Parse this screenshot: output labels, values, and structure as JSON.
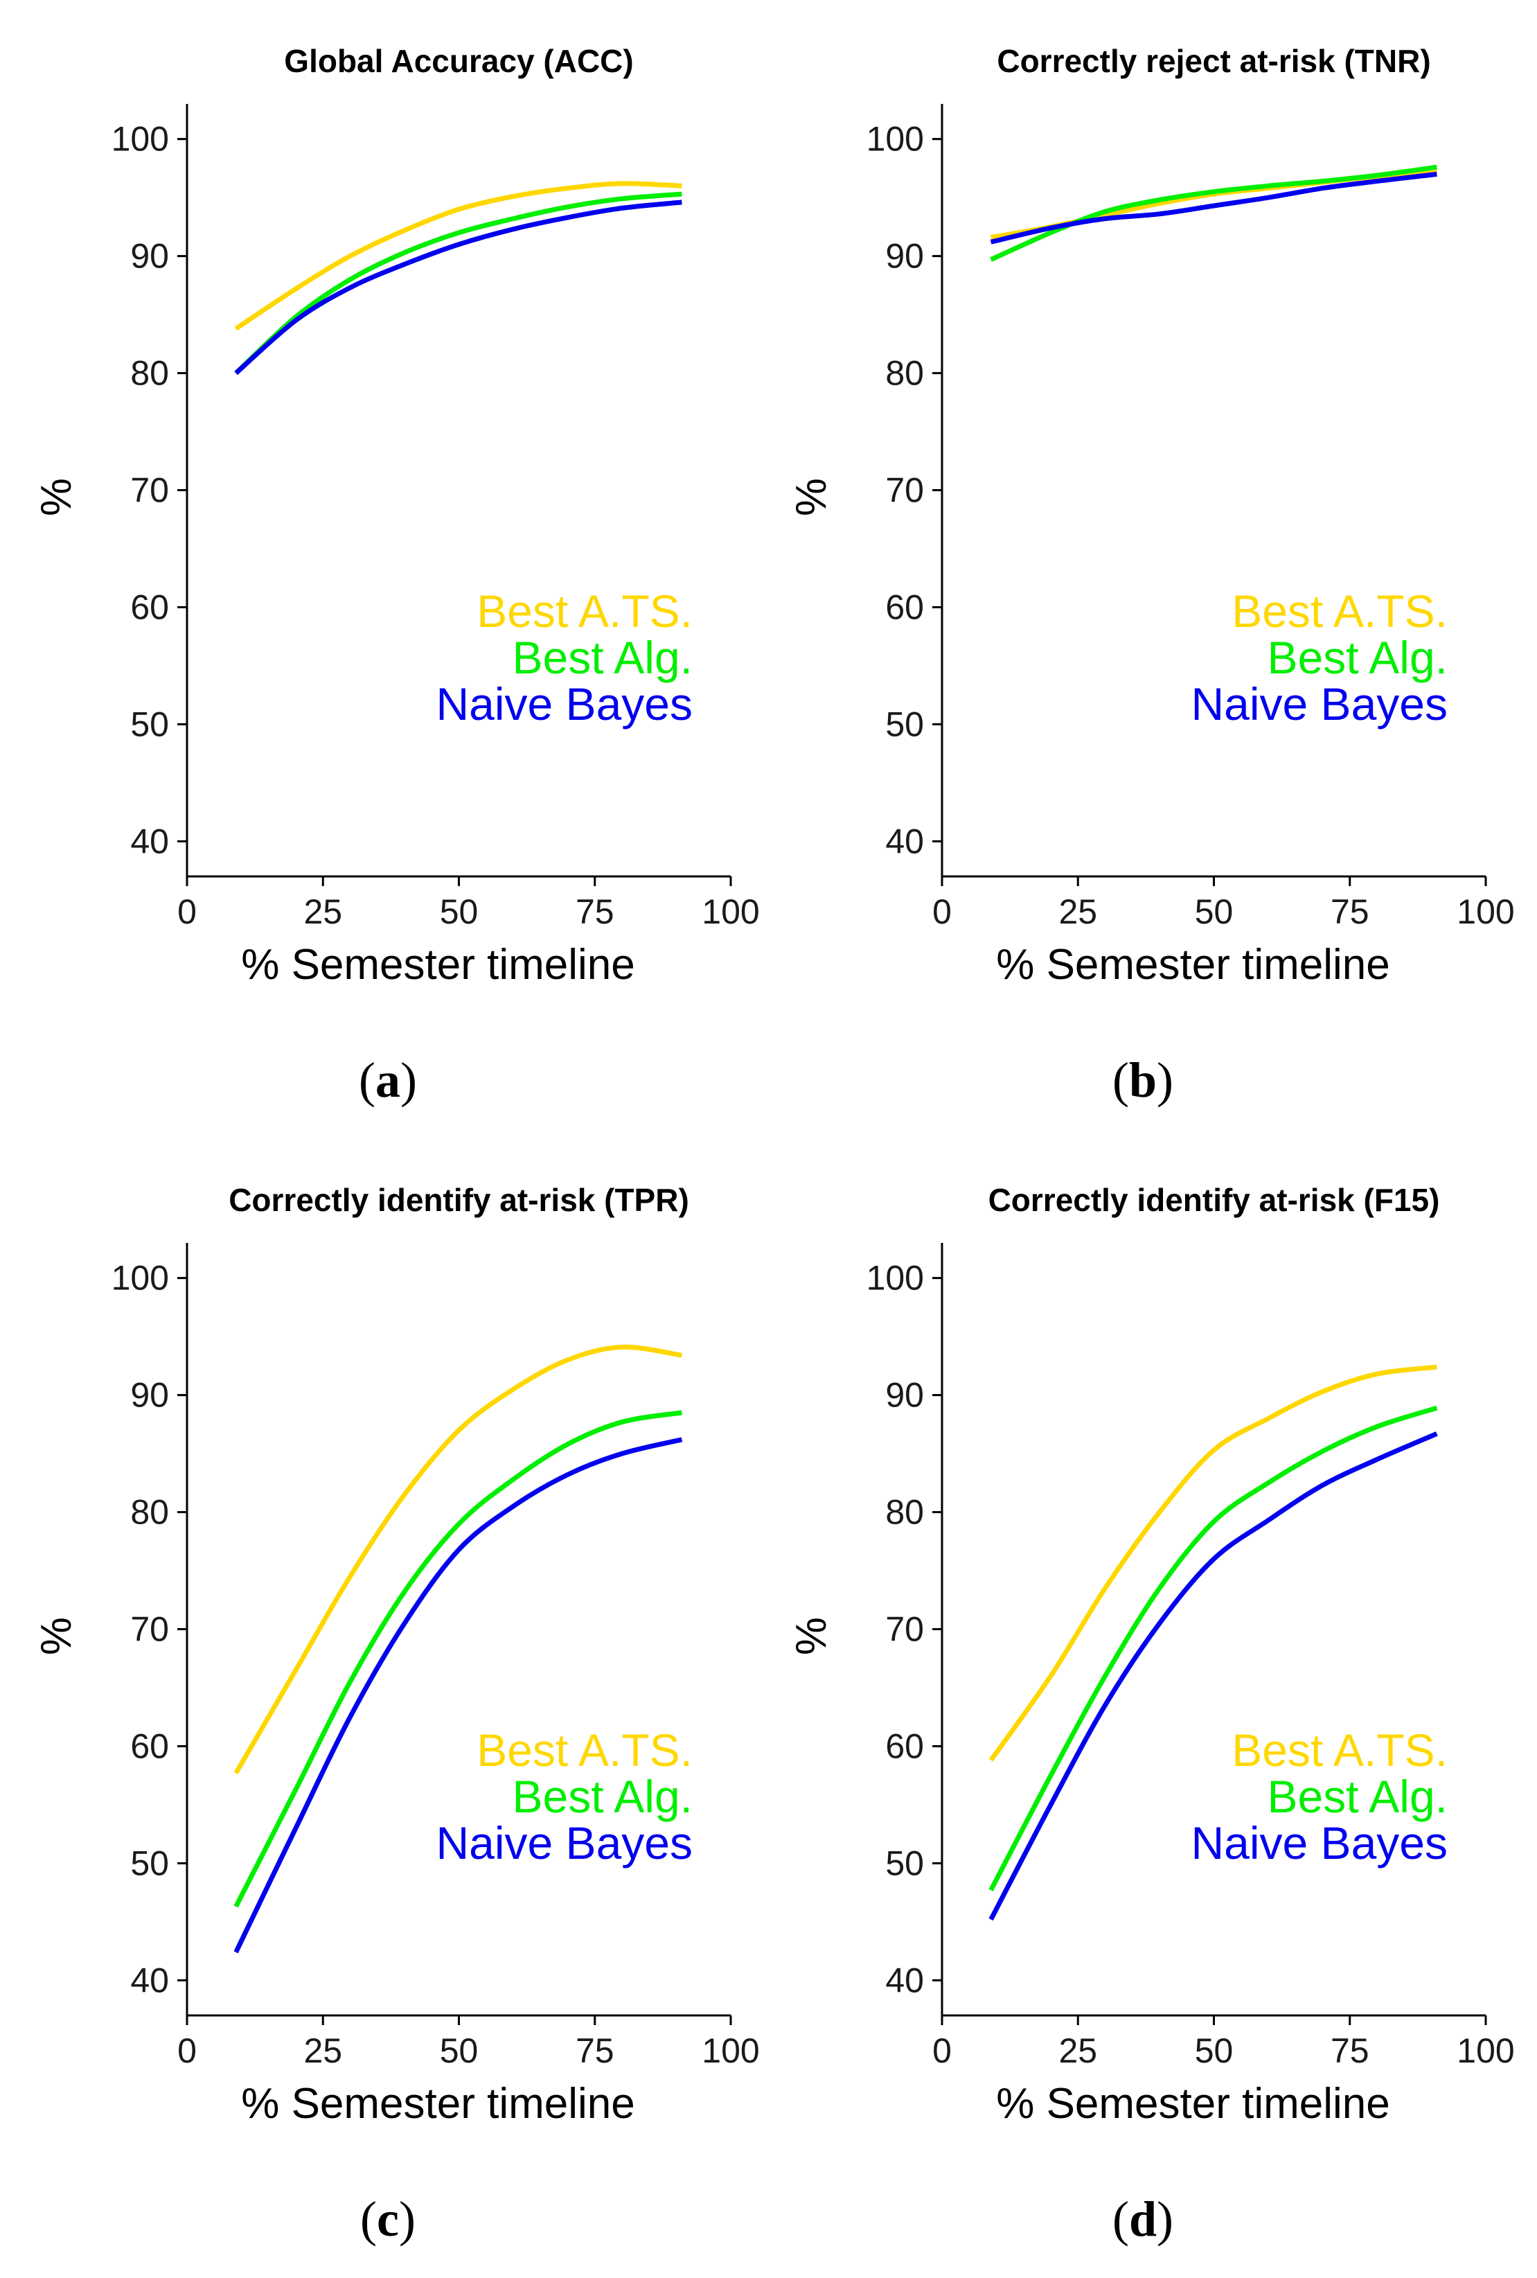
{
  "colors": {
    "best_ats": "#ffd700",
    "best_alg": "#00ee00",
    "naive_bayes": "#0000ee"
  },
  "legend_labels": [
    "Best A.TS.",
    "Best Alg.",
    "Naive Bayes"
  ],
  "chart_data": [
    {
      "type": "line",
      "panel_label": "a",
      "title": "Global Accuracy (ACC)",
      "xlabel": "% Semester timeline",
      "ylabel": "%",
      "xlim": [
        0,
        100
      ],
      "ylim": [
        37,
        103
      ],
      "xticks": [
        0,
        25,
        50,
        75,
        100
      ],
      "yticks": [
        40,
        50,
        60,
        70,
        80,
        90,
        100
      ],
      "legend": "right",
      "x": [
        9,
        20,
        30,
        40,
        50,
        60,
        70,
        80,
        91
      ],
      "series": [
        {
          "name": "Best A.TS.",
          "color": "#ffd700",
          "values": [
            83.8,
            87.2,
            90.0,
            92.2,
            94.0,
            95.1,
            95.8,
            96.2,
            96.0
          ]
        },
        {
          "name": "Best Alg.",
          "color": "#00ee00",
          "values": [
            80.0,
            84.8,
            88.0,
            90.3,
            92.0,
            93.2,
            94.2,
            94.9,
            95.3
          ]
        },
        {
          "name": "Naive Bayes",
          "color": "#0000ee",
          "values": [
            80.0,
            84.5,
            87.3,
            89.3,
            91.0,
            92.3,
            93.3,
            94.1,
            94.6
          ]
        }
      ]
    },
    {
      "type": "line",
      "panel_label": "b",
      "title": "Correctly reject at-risk (TNR)",
      "xlabel": "% Semester timeline",
      "ylabel": "%",
      "xlim": [
        0,
        100
      ],
      "ylim": [
        37,
        103
      ],
      "xticks": [
        0,
        25,
        50,
        75,
        100
      ],
      "yticks": [
        40,
        50,
        60,
        70,
        80,
        90,
        100
      ],
      "legend": "right",
      "x": [
        9,
        20,
        30,
        40,
        50,
        60,
        70,
        80,
        91
      ],
      "series": [
        {
          "name": "Best A.TS.",
          "color": "#ffd700",
          "values": [
            91.6,
            92.5,
            93.5,
            94.5,
            95.3,
            95.8,
            96.3,
            96.8,
            97.2
          ]
        },
        {
          "name": "Best Alg.",
          "color": "#00ee00",
          "values": [
            89.7,
            92.0,
            93.8,
            94.8,
            95.5,
            96.0,
            96.4,
            96.9,
            97.6
          ]
        },
        {
          "name": "Naive Bayes",
          "color": "#0000ee",
          "values": [
            91.2,
            92.4,
            93.2,
            93.6,
            94.3,
            95.0,
            95.8,
            96.4,
            97.0
          ]
        }
      ]
    },
    {
      "type": "line",
      "panel_label": "c",
      "title": "Correctly identify at-risk (TPR)",
      "xlabel": "% Semester timeline",
      "ylabel": "%",
      "xlim": [
        0,
        100
      ],
      "ylim": [
        37,
        103
      ],
      "xticks": [
        0,
        25,
        50,
        75,
        100
      ],
      "yticks": [
        40,
        50,
        60,
        70,
        80,
        90,
        100
      ],
      "legend": "right",
      "x": [
        9,
        20,
        30,
        40,
        50,
        60,
        70,
        80,
        91
      ],
      "series": [
        {
          "name": "Best A.TS.",
          "color": "#ffd700",
          "values": [
            57.7,
            66.5,
            74.5,
            81.5,
            87.0,
            90.5,
            93.0,
            94.1,
            93.4
          ]
        },
        {
          "name": "Best Alg.",
          "color": "#00ee00",
          "values": [
            46.3,
            56.3,
            65.5,
            73.2,
            79.0,
            82.8,
            85.8,
            87.7,
            88.5
          ]
        },
        {
          "name": "Naive Bayes",
          "color": "#0000ee",
          "values": [
            42.4,
            53.0,
            62.5,
            70.5,
            76.8,
            80.5,
            83.2,
            85.0,
            86.2
          ]
        }
      ]
    },
    {
      "type": "line",
      "panel_label": "d",
      "title": "Correctly identify at-risk (F15)",
      "xlabel": "% Semester timeline",
      "ylabel": "%",
      "xlim": [
        0,
        100
      ],
      "ylim": [
        37,
        103
      ],
      "xticks": [
        0,
        25,
        50,
        75,
        100
      ],
      "yticks": [
        40,
        50,
        60,
        70,
        80,
        90,
        100
      ],
      "legend": "right",
      "x": [
        9,
        20,
        30,
        40,
        50,
        60,
        70,
        80,
        91
      ],
      "series": [
        {
          "name": "Best A.TS.",
          "color": "#ffd700",
          "values": [
            58.8,
            66.0,
            73.5,
            80.0,
            85.3,
            88.0,
            90.3,
            91.8,
            92.4
          ]
        },
        {
          "name": "Best Alg.",
          "color": "#00ee00",
          "values": [
            47.7,
            57.5,
            66.0,
            73.5,
            79.2,
            82.5,
            85.2,
            87.3,
            88.9
          ]
        },
        {
          "name": "Naive Bayes",
          "color": "#0000ee",
          "values": [
            45.2,
            55.0,
            63.5,
            70.5,
            76.0,
            79.3,
            82.3,
            84.5,
            86.7
          ]
        }
      ]
    }
  ]
}
